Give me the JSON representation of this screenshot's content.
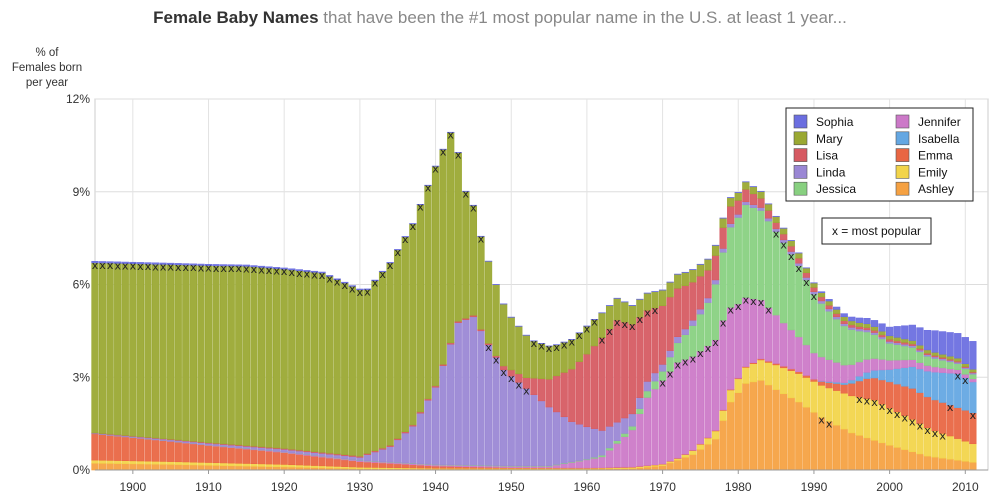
{
  "title": {
    "bold": "Female Baby Names",
    "rest": " that have been the #1 most popular name in the U.S. at least 1 year..."
  },
  "chart_data": {
    "type": "bar",
    "stacked": true,
    "ylabel": "% of\nFemales born\nper year",
    "ylim": [
      0,
      12
    ],
    "yticks": [
      0,
      3,
      6,
      9,
      12
    ],
    "ytick_labels": [
      "0%",
      "3%",
      "6%",
      "9%",
      "12%"
    ],
    "xlim": [
      1895,
      2013
    ],
    "xticks": [
      1900,
      1910,
      1920,
      1930,
      1940,
      1950,
      1960,
      1970,
      1980,
      1990,
      2000,
      2010
    ],
    "xtick_labels": [
      "1900",
      "1910",
      "1920",
      "1930",
      "1940",
      "1950",
      "1960",
      "1970",
      "1980",
      "1990",
      "2000",
      "2010"
    ],
    "x_start": 1895,
    "x_end": 2011,
    "grid": true,
    "legend_position": "top-right",
    "legend_note": "x = most popular",
    "marker_symbol": "x",
    "stack_order": [
      "Ashley",
      "Emily",
      "Emma",
      "Isabella",
      "Jennifer",
      "Jessica",
      "Linda",
      "Lisa",
      "Mary",
      "Sophia"
    ],
    "legend_order": [
      "Sophia",
      "Mary",
      "Lisa",
      "Linda",
      "Jessica",
      "Jennifer",
      "Isabella",
      "Emma",
      "Emily",
      "Ashley"
    ],
    "series": [
      {
        "name": "Mary",
        "color": "#9aa832",
        "points": [
          [
            1895,
            5.5
          ],
          [
            1915,
            5.8
          ],
          [
            1925,
            5.8
          ],
          [
            1931,
            5.3
          ],
          [
            1936,
            6.3
          ],
          [
            1940,
            7.1
          ],
          [
            1942,
            6.8
          ],
          [
            1944,
            4.1
          ],
          [
            1946,
            3.0
          ],
          [
            1948,
            2.3
          ],
          [
            1950,
            1.7
          ],
          [
            1953,
            1.2
          ],
          [
            1956,
            1.0
          ],
          [
            1960,
            0.9
          ],
          [
            1966,
            0.6
          ],
          [
            1970,
            0.5
          ],
          [
            1980,
            0.25
          ],
          [
            1990,
            0.14
          ],
          [
            2011,
            0.09
          ]
        ],
        "top1": [
          1895,
          1946
        ],
        "top1_extra": [
          1953,
          1961
        ]
      },
      {
        "name": "Linda",
        "color": "#9a87d4",
        "points": [
          [
            1895,
            0.02
          ],
          [
            1930,
            0.1
          ],
          [
            1934,
            0.5
          ],
          [
            1937,
            1.2
          ],
          [
            1940,
            2.5
          ],
          [
            1943,
            4.6
          ],
          [
            1945,
            4.8
          ],
          [
            1947,
            3.9
          ],
          [
            1949,
            3.1
          ],
          [
            1952,
            2.5
          ],
          [
            1955,
            1.9
          ],
          [
            1958,
            1.3
          ],
          [
            1962,
            0.8
          ],
          [
            1966,
            0.4
          ],
          [
            1970,
            0.22
          ],
          [
            1980,
            0.1
          ],
          [
            2011,
            0.04
          ]
        ],
        "top1": [
          1947,
          1952
        ]
      },
      {
        "name": "Lisa",
        "color": "#d65a62",
        "points": [
          [
            1895,
            0.01
          ],
          [
            1948,
            0.05
          ],
          [
            1952,
            0.35
          ],
          [
            1955,
            0.9
          ],
          [
            1958,
            1.7
          ],
          [
            1962,
            3.0
          ],
          [
            1964,
            3.3
          ],
          [
            1966,
            2.9
          ],
          [
            1968,
            2.3
          ],
          [
            1970,
            1.9
          ],
          [
            1973,
            1.4
          ],
          [
            1976,
            0.9
          ],
          [
            1980,
            0.45
          ],
          [
            1985,
            0.2
          ],
          [
            1995,
            0.08
          ],
          [
            2011,
            0.03
          ]
        ],
        "top1": [
          1962,
          1969
        ]
      },
      {
        "name": "Jennifer",
        "color": "#cc79c8",
        "points": [
          [
            1895,
            0.0
          ],
          [
            1955,
            0.05
          ],
          [
            1962,
            0.35
          ],
          [
            1966,
            1.2
          ],
          [
            1968,
            2.2
          ],
          [
            1970,
            2.7
          ],
          [
            1972,
            3.1
          ],
          [
            1975,
            3.0
          ],
          [
            1978,
            2.9
          ],
          [
            1980,
            2.4
          ],
          [
            1983,
            1.9
          ],
          [
            1986,
            1.4
          ],
          [
            1990,
            0.85
          ],
          [
            1995,
            0.5
          ],
          [
            2000,
            0.3
          ],
          [
            2005,
            0.18
          ],
          [
            2011,
            0.1
          ]
        ],
        "top1": [
          1970,
          1984
        ]
      },
      {
        "name": "Jessica",
        "color": "#88d080",
        "points": [
          [
            1895,
            0.0
          ],
          [
            1960,
            0.02
          ],
          [
            1966,
            0.12
          ],
          [
            1970,
            0.3
          ],
          [
            1973,
            0.8
          ],
          [
            1976,
            1.4
          ],
          [
            1979,
            2.6
          ],
          [
            1981,
            3.0
          ],
          [
            1983,
            2.9
          ],
          [
            1986,
            2.6
          ],
          [
            1988,
            2.3
          ],
          [
            1990,
            1.9
          ],
          [
            1993,
            1.4
          ],
          [
            1996,
            1.0
          ],
          [
            2000,
            0.55
          ],
          [
            2005,
            0.3
          ],
          [
            2011,
            0.15
          ]
        ],
        "top1": [
          1985,
          1990
        ]
      },
      {
        "name": "Ashley",
        "color": "#f5a142",
        "points": [
          [
            1895,
            0.22
          ],
          [
            1905,
            0.18
          ],
          [
            1920,
            0.1
          ],
          [
            1930,
            0.04
          ],
          [
            1960,
            0.03
          ],
          [
            1966,
            0.05
          ],
          [
            1970,
            0.14
          ],
          [
            1974,
            0.5
          ],
          [
            1977,
            1.0
          ],
          [
            1979,
            2.2
          ],
          [
            1981,
            2.8
          ],
          [
            1983,
            2.9
          ],
          [
            1985,
            2.6
          ],
          [
            1988,
            2.2
          ],
          [
            1991,
            1.7
          ],
          [
            1995,
            1.2
          ],
          [
            2000,
            0.8
          ],
          [
            2005,
            0.45
          ],
          [
            2011,
            0.25
          ]
        ],
        "top1": [
          1991,
          1992
        ]
      },
      {
        "name": "Emily",
        "color": "#f2d44a",
        "points": [
          [
            1895,
            0.1
          ],
          [
            1920,
            0.08
          ],
          [
            1940,
            0.02
          ],
          [
            1960,
            0.02
          ],
          [
            1972,
            0.05
          ],
          [
            1976,
            0.2
          ],
          [
            1980,
            0.45
          ],
          [
            1985,
            0.8
          ],
          [
            1990,
            1.0
          ],
          [
            1995,
            1.2
          ],
          [
            1998,
            1.3
          ],
          [
            2000,
            1.2
          ],
          [
            2003,
            1.05
          ],
          [
            2006,
            0.85
          ],
          [
            2009,
            0.7
          ],
          [
            2011,
            0.6
          ]
        ],
        "top1": [
          1996,
          2007
        ]
      },
      {
        "name": "Emma",
        "color": "#e96643",
        "points": [
          [
            1895,
            0.85
          ],
          [
            1900,
            0.75
          ],
          [
            1910,
            0.55
          ],
          [
            1920,
            0.38
          ],
          [
            1930,
            0.18
          ],
          [
            1940,
            0.07
          ],
          [
            1950,
            0.02
          ],
          [
            1970,
            0.01
          ],
          [
            1980,
            0.02
          ],
          [
            1990,
            0.07
          ],
          [
            1994,
            0.28
          ],
          [
            1997,
            0.65
          ],
          [
            2000,
            0.85
          ],
          [
            2003,
            1.0
          ],
          [
            2006,
            1.0
          ],
          [
            2009,
            1.0
          ],
          [
            2011,
            1.0
          ]
        ],
        "top1": [
          2008,
          2008
        ],
        "top1_extra": [
          2011,
          2011
        ]
      },
      {
        "name": "Isabella",
        "color": "#64a7e2",
        "points": [
          [
            1895,
            0.0
          ],
          [
            1990,
            0.0
          ],
          [
            1994,
            0.06
          ],
          [
            1998,
            0.25
          ],
          [
            2000,
            0.4
          ],
          [
            2003,
            0.7
          ],
          [
            2006,
            0.9
          ],
          [
            2009,
            1.1
          ],
          [
            2011,
            1.0
          ]
        ],
        "top1": [
          2009,
          2010
        ]
      },
      {
        "name": "Sophia",
        "color": "#6b6ee0",
        "points": [
          [
            1895,
            0.05
          ],
          [
            1920,
            0.04
          ],
          [
            1940,
            0.01
          ],
          [
            1990,
            0.01
          ],
          [
            1994,
            0.1
          ],
          [
            1998,
            0.2
          ],
          [
            2000,
            0.28
          ],
          [
            2003,
            0.5
          ],
          [
            2006,
            0.7
          ],
          [
            2009,
            0.8
          ],
          [
            2011,
            0.9
          ]
        ],
        "top1": [
          2012,
          2012
        ]
      }
    ]
  }
}
